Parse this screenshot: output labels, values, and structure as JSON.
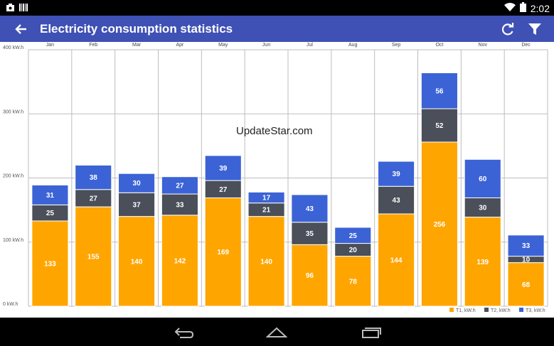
{
  "status": {
    "time": "2:02"
  },
  "app": {
    "title": "Electricity consumption statistics"
  },
  "watermark": "UpdateStar.com",
  "icons": {
    "status_left": [
      "screenshot-icon",
      "barcode-icon"
    ],
    "status_right": [
      "wifi-icon",
      "battery-icon"
    ],
    "toolbar": [
      "back-arrow-icon",
      "refresh-icon",
      "filter-icon"
    ],
    "nav": [
      "nav-back-icon",
      "nav-home-icon",
      "nav-recents-icon"
    ]
  },
  "colors": {
    "app_bar": "#3f51b5",
    "t1": "#ffa500",
    "t2": "#4a4f59",
    "t3": "#3b63d6"
  },
  "chart_data": {
    "type": "bar",
    "stacked": true,
    "categories": [
      "Jan",
      "Feb",
      "Mar",
      "Apr",
      "May",
      "Jun",
      "Jul",
      "Aug",
      "Sep",
      "Oct",
      "Nov",
      "Dec"
    ],
    "series": [
      {
        "name": "T1, kW.h",
        "color": "#ffa500",
        "values": [
          133,
          155,
          140,
          142,
          169,
          140,
          96,
          78,
          144,
          256,
          139,
          68
        ]
      },
      {
        "name": "T2, kW.h",
        "color": "#4a4f59",
        "values": [
          25,
          27,
          37,
          33,
          27,
          21,
          35,
          20,
          43,
          52,
          30,
          10
        ]
      },
      {
        "name": "T3, kW.h",
        "color": "#3b63d6",
        "values": [
          31,
          38,
          30,
          27,
          39,
          17,
          43,
          25,
          39,
          56,
          60,
          33
        ]
      }
    ],
    "yticks": [
      "0 kW.h",
      "100 kW.h",
      "200 kW.h",
      "300 kW.h",
      "400 kW.h"
    ],
    "ylim": [
      0,
      400
    ],
    "grid": true,
    "legend_position": "bottom-right"
  }
}
